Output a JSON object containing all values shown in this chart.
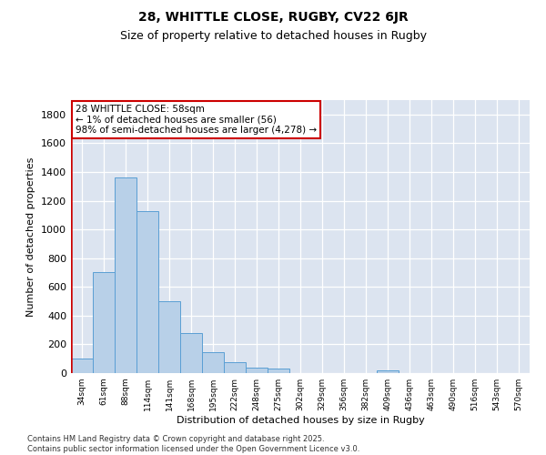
{
  "title1": "28, WHITTLE CLOSE, RUGBY, CV22 6JR",
  "title2": "Size of property relative to detached houses in Rugby",
  "xlabel": "Distribution of detached houses by size in Rugby",
  "ylabel": "Number of detached properties",
  "bg_color": "#dce4f0",
  "bar_color": "#b8d0e8",
  "bar_edge_color": "#5a9fd4",
  "annotation_text": "28 WHITTLE CLOSE: 58sqm\n← 1% of detached houses are smaller (56)\n98% of semi-detached houses are larger (4,278) →",
  "vline_color": "#cc0000",
  "categories": [
    "34sqm",
    "61sqm",
    "88sqm",
    "114sqm",
    "141sqm",
    "168sqm",
    "195sqm",
    "222sqm",
    "248sqm",
    "275sqm",
    "302sqm",
    "329sqm",
    "356sqm",
    "382sqm",
    "409sqm",
    "436sqm",
    "463sqm",
    "490sqm",
    "516sqm",
    "543sqm",
    "570sqm"
  ],
  "values": [
    100,
    700,
    1360,
    1130,
    500,
    280,
    145,
    75,
    35,
    30,
    0,
    0,
    0,
    0,
    20,
    0,
    0,
    0,
    0,
    0,
    0
  ],
  "ylim": [
    0,
    1900
  ],
  "yticks": [
    0,
    200,
    400,
    600,
    800,
    1000,
    1200,
    1400,
    1600,
    1800
  ],
  "footnote": "Contains HM Land Registry data © Crown copyright and database right 2025.\nContains public sector information licensed under the Open Government Licence v3.0."
}
